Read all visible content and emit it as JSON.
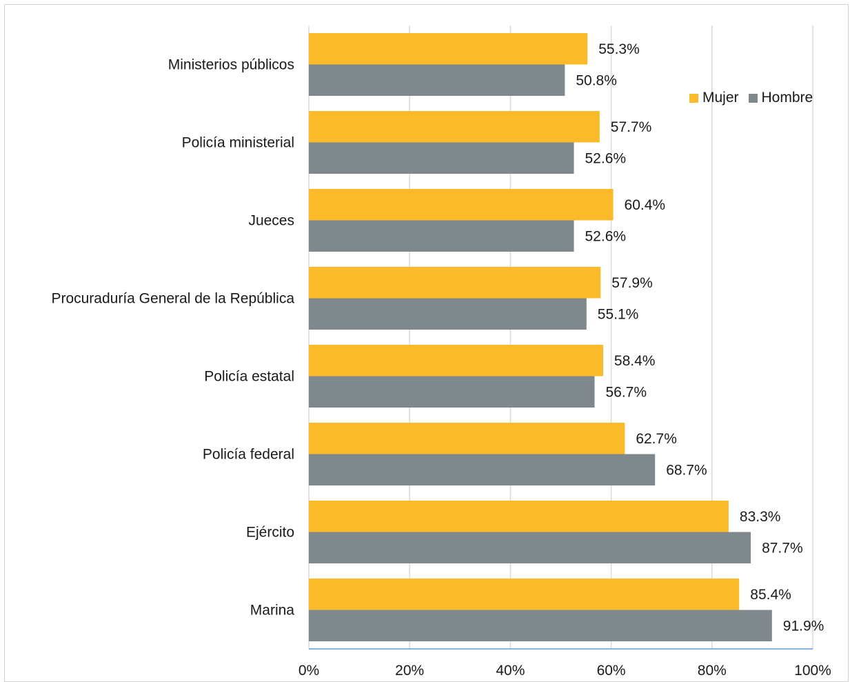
{
  "colors": {
    "mujer": "#FBBA2A",
    "hombre": "#7F888D",
    "grid": "#d9d9d9",
    "axis": "#5b9bd5"
  },
  "chart_data": {
    "type": "bar",
    "orientation": "horizontal",
    "categories": [
      "Ministerios públicos",
      "Policía ministerial",
      "Jueces",
      "Procuraduría General de la República",
      "Policía estatal",
      "Policía federal",
      "Ejército",
      "Marina"
    ],
    "series": [
      {
        "name": "Mujer",
        "values": [
          55.3,
          57.7,
          60.4,
          57.9,
          58.4,
          62.7,
          83.3,
          85.4
        ],
        "labels": [
          "55.3%",
          "57.7%",
          "60.4%",
          "57.9%",
          "58.4%",
          "62.7%",
          "83.3%",
          "85.4%"
        ]
      },
      {
        "name": "Hombre",
        "values": [
          50.8,
          52.6,
          52.6,
          55.1,
          56.7,
          68.7,
          87.7,
          91.9
        ],
        "labels": [
          "50.8%",
          "52.6%",
          "52.6%",
          "55.1%",
          "56.7%",
          "68.7%",
          "87.7%",
          "91.9%"
        ]
      }
    ],
    "xticks": [
      "0%",
      "20%",
      "40%",
      "60%",
      "80%",
      "100%"
    ],
    "xlim": [
      0,
      100
    ],
    "grid": true,
    "legend": "top-right"
  }
}
